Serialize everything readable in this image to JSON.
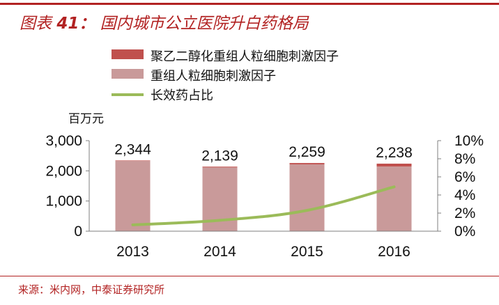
{
  "figure": {
    "title_prefix": "图表",
    "title_number": "41：",
    "title_text": "国内城市公立医院升白药格局",
    "source": "来源：米内网，中泰证券研究所"
  },
  "colors": {
    "accent": "#b22222",
    "peg_gcsf": "#c0504d",
    "gcsf": "#c99a9a",
    "long_acting_share": "#9bbb59"
  },
  "chart_data": {
    "type": "bar",
    "stacked": true,
    "unit_left": "百万元",
    "categories": [
      "2013",
      "2014",
      "2015",
      "2016"
    ],
    "series": [
      {
        "name": "聚乙二醇化重组人粒细胞刺激因子",
        "kind": "bar",
        "axis": "left",
        "values": [
          15,
          25,
          45,
          95
        ]
      },
      {
        "name": "重组人粒细胞刺激因子",
        "kind": "bar",
        "axis": "left",
        "values": [
          2329,
          2114,
          2214,
          2143
        ]
      },
      {
        "name": "长效药占比",
        "kind": "line",
        "axis": "right",
        "values": [
          0.7,
          1.2,
          2.3,
          4.9
        ]
      }
    ],
    "totals": [
      "2,344",
      "2,139",
      "2,259",
      "2,238"
    ],
    "y_left": {
      "min": 0,
      "max": 3000,
      "ticks": [
        "0",
        "1,000",
        "2,000",
        "3,000"
      ],
      "tick_values": [
        0,
        1000,
        2000,
        3000
      ]
    },
    "y_right": {
      "min": 0,
      "max": 10,
      "ticks": [
        "0%",
        "2%",
        "4%",
        "6%",
        "8%",
        "10%"
      ],
      "tick_values": [
        0,
        2,
        4,
        6,
        8,
        10
      ]
    },
    "legend_position": "top",
    "grid": false
  }
}
